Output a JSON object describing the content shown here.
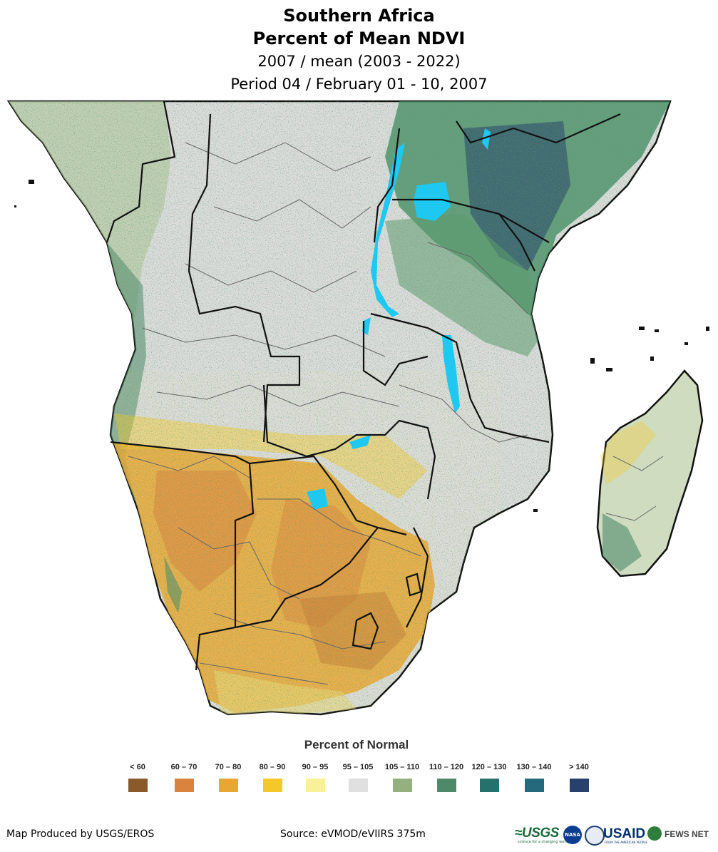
{
  "title": {
    "line1": "Southern Africa",
    "line2": "Percent of Mean NDVI",
    "line3": "2007 / mean (2003 - 2022)",
    "line4": "Period 04 / February 01 - 10, 2007"
  },
  "legend": {
    "title": "Percent of Normal",
    "classes": [
      {
        "label": "< 60",
        "color": "#8b5a2b"
      },
      {
        "label": "60 – 70",
        "color": "#d9833f"
      },
      {
        "label": "70 – 80",
        "color": "#eaa633"
      },
      {
        "label": "80 – 90",
        "color": "#f5c829"
      },
      {
        "label": "90 – 95",
        "color": "#f9f19a"
      },
      {
        "label": "95 – 105",
        "color": "#e0e0e0"
      },
      {
        "label": "105 – 110",
        "color": "#94b07f"
      },
      {
        "label": "110 – 120",
        "color": "#4e8a6a"
      },
      {
        "label": "120 – 130",
        "color": "#25716d"
      },
      {
        "label": "130 – 140",
        "color": "#256a7c"
      },
      {
        "label": "> 140",
        "color": "#27406c"
      }
    ]
  },
  "footer": {
    "produced_by": "Map Produced by USGS/EROS",
    "source": "Source: eVMOD/eVIIRS 375m"
  },
  "logos": {
    "usgs": "≈USGS",
    "usgs_tagline": "science for a changing world",
    "nasa": "NASA",
    "usaid": "USAID",
    "usaid_tagline": "FROM THE AMERICAN PEOPLE",
    "fews": "FEWS NET"
  },
  "map": {
    "ocean_color": "#ffffff",
    "land_base_color": "#dcdcdc",
    "water_color": "#1ec8f0",
    "border_color": "#111111",
    "admin_color": "#666666"
  }
}
